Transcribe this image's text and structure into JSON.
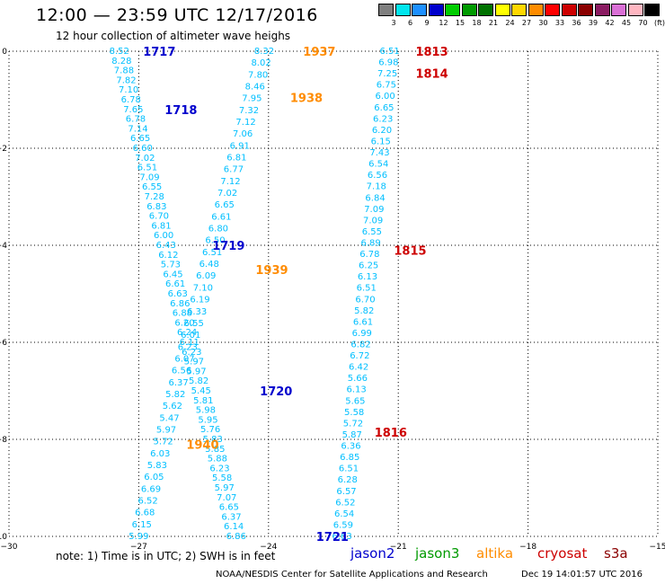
{
  "header": {
    "title": "12:00 — 23:59 UTC 12/17/2016",
    "subtitle": "12 hour collection of altimeter wave heighs"
  },
  "colorbar": {
    "labels": [
      "3",
      "6",
      "9",
      "12",
      "15",
      "18",
      "21",
      "24",
      "27",
      "30",
      "33",
      "36",
      "39",
      "42",
      "45",
      "70",
      "(ft)"
    ],
    "colors": [
      "#7f7f7f",
      "#00e5ee",
      "#1e90ff",
      "#0000cd",
      "#00cd00",
      "#009a00",
      "#007200",
      "#ffff00",
      "#ffd700",
      "#ff8c00",
      "#ff0000",
      "#cd0000",
      "#8b0000",
      "#8b1c62",
      "#da70d6",
      "#ffb6c1",
      "#000000"
    ]
  },
  "chart_data": {
    "type": "scatter",
    "x_ticks": [
      "−30",
      "−27",
      "−24",
      "−21",
      "−18",
      "−15"
    ],
    "y_ticks": [
      "0",
      "−2",
      "−4",
      "−6",
      "−8",
      "−10"
    ],
    "xlim": [
      -30,
      -15
    ],
    "ylim": [
      -10,
      0
    ],
    "grid": true,
    "tracks": [
      {
        "name": "track-a",
        "color": "#00bfff",
        "x0": -27.45,
        "x1": -24.75,
        "values": [
          "8.52",
          "8.28",
          "7.88",
          "7.82",
          "7.10",
          "6.78",
          "7.65",
          "6.78",
          "7.14",
          "6.65",
          "6.60",
          "7.02",
          "6.51",
          "7.09",
          "6.55",
          "7.28",
          "6.83",
          "6.70",
          "6.81",
          "6.00",
          "6.43",
          "6.12",
          "5.73",
          "6.45",
          "6.61",
          "6.63",
          "6.86",
          "6.88",
          "6.20",
          "6.24",
          "6.11",
          "6.23",
          "5.97",
          "5.97",
          "5.82",
          "5.45",
          "5.81",
          "5.98",
          "5.95",
          "5.76",
          "5.83",
          "5.85",
          "5.88",
          "6.23",
          "5.58",
          "5.97",
          "7.07",
          "6.65",
          "6.37",
          "6.14",
          "6.86"
        ]
      },
      {
        "name": "track-b",
        "color": "#00bfff",
        "x0": -24.1,
        "x1": -27.0,
        "values": [
          "8.32",
          "8.02",
          "7.80",
          "8.46",
          "7.95",
          "7.32",
          "7.12",
          "7.06",
          "6.91",
          "6.81",
          "6.77",
          "7.12",
          "7.02",
          "6.65",
          "6.61",
          "6.80",
          "6.50",
          "6.51",
          "6.48",
          "6.09",
          "7.10",
          "6.19",
          "6.33",
          "6.55",
          "6.01",
          "6.23",
          "6.07",
          "6.56",
          "6.37",
          "5.82",
          "5.62",
          "5.47",
          "5.97",
          "5.72",
          "6.03",
          "5.83",
          "6.05",
          "6.69",
          "6.52",
          "6.68",
          "6.15",
          "5.99"
        ]
      },
      {
        "name": "track-c",
        "color": "#00bfff",
        "x0": -21.2,
        "x1": -22.3,
        "values": [
          "6.51",
          "6.98",
          "7.25",
          "6.75",
          "6.00",
          "6.65",
          "6.23",
          "6.20",
          "6.15",
          "7.43",
          "6.54",
          "6.56",
          "7.18",
          "6.84",
          "7.09",
          "7.09",
          "6.55",
          "6.89",
          "6.78",
          "6.25",
          "6.13",
          "6.51",
          "6.70",
          "5.82",
          "6.61",
          "6.99",
          "6.82",
          "6.72",
          "6.42",
          "5.66",
          "6.13",
          "5.65",
          "5.58",
          "5.72",
          "5.87",
          "6.36",
          "6.85",
          "6.51",
          "6.28",
          "6.57",
          "6.52",
          "6.54",
          "6.59",
          "6.63"
        ]
      }
    ],
    "annotations": [
      {
        "text": "1717",
        "color": "#0000cd",
        "x": -26.9,
        "y": 0.0
      },
      {
        "text": "1718",
        "color": "#0000cd",
        "x": -26.4,
        "y": -1.2
      },
      {
        "text": "1719",
        "color": "#0000cd",
        "x": -25.3,
        "y": -4.0
      },
      {
        "text": "1720",
        "color": "#0000cd",
        "x": -24.2,
        "y": -7.0
      },
      {
        "text": "1721",
        "color": "#0000cd",
        "x": -22.9,
        "y": -10.0
      },
      {
        "text": "1937",
        "color": "#ff8c00",
        "x": -23.2,
        "y": 0.0
      },
      {
        "text": "1938",
        "color": "#ff8c00",
        "x": -23.5,
        "y": -0.95
      },
      {
        "text": "1939",
        "color": "#ff8c00",
        "x": -24.3,
        "y": -4.5
      },
      {
        "text": "1940",
        "color": "#ff8c00",
        "x": -25.9,
        "y": -8.1
      },
      {
        "text": "1813",
        "color": "#cd0000",
        "x": -20.6,
        "y": 0.0
      },
      {
        "text": "1814",
        "color": "#cd0000",
        "x": -20.6,
        "y": -0.45
      },
      {
        "text": "1815",
        "color": "#cd0000",
        "x": -21.1,
        "y": -4.1
      },
      {
        "text": "1816",
        "color": "#cd0000",
        "x": -21.55,
        "y": -7.85
      }
    ]
  },
  "footer": {
    "note": "note:  1) Time is in UTC;  2) SWH is in feet",
    "satellites": [
      {
        "name": "jason2",
        "color": "#0000cd"
      },
      {
        "name": "jason3",
        "color": "#009a00"
      },
      {
        "name": "altika",
        "color": "#ff8c00"
      },
      {
        "name": "cryosat",
        "color": "#cd0000"
      },
      {
        "name": "s3a",
        "color": "#8b0000"
      }
    ],
    "credit": "NOAA/NESDIS Center for Satellite Applications and Research",
    "timestamp": "Dec 19 14:01:57 UTC 2016"
  }
}
